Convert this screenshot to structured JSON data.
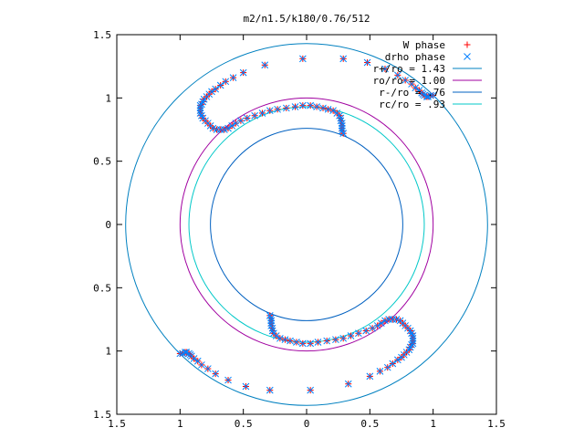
{
  "chart_data": {
    "type": "scatter",
    "title": "m2/n1.5/k180/0.76/512",
    "xlabel": "",
    "ylabel": "",
    "xlim": [
      -1.5,
      1.5
    ],
    "ylim": [
      -1.5,
      1.5
    ],
    "x_ticks": [
      {
        "value": -1.5,
        "label": "1.5"
      },
      {
        "value": -1.0,
        "label": "1"
      },
      {
        "value": -0.5,
        "label": "0.5"
      },
      {
        "value": 0.0,
        "label": "0"
      },
      {
        "value": 0.5,
        "label": "0.5"
      },
      {
        "value": 1.0,
        "label": "1"
      },
      {
        "value": 1.5,
        "label": "1.5"
      }
    ],
    "y_ticks": [
      {
        "value": 1.5,
        "label": "1.5"
      },
      {
        "value": 1.0,
        "label": "1"
      },
      {
        "value": 0.5,
        "label": "0.5"
      },
      {
        "value": 0.0,
        "label": "0"
      },
      {
        "value": -0.5,
        "label": "0.5"
      },
      {
        "value": -1.0,
        "label": "1"
      },
      {
        "value": -1.5,
        "label": "1.5"
      }
    ],
    "grid": false,
    "legend_position": "top-right",
    "circles": [
      {
        "name": "r+/ro = 1.43",
        "radius": 1.43,
        "color": "#0080c0"
      },
      {
        "name": "ro/ro = 1.00",
        "radius": 1.0,
        "color": "#a000a0"
      },
      {
        "name": "r-/ro = .76",
        "radius": 0.76,
        "color": "#0060c0"
      },
      {
        "name": "rc/ro = .93",
        "radius": 0.93,
        "color": "#00c8c8"
      }
    ],
    "series": [
      {
        "name": "W phase",
        "marker": "plus",
        "color": "#ff0000",
        "points": [
          [
            -1.0,
            -1.02
          ],
          [
            -0.98,
            -1.02
          ],
          [
            -0.96,
            -1.01
          ],
          [
            -0.95,
            -1.01
          ],
          [
            -0.93,
            -1.02
          ],
          [
            -0.92,
            -1.03
          ],
          [
            -0.91,
            -1.04
          ],
          [
            -0.89,
            -1.06
          ],
          [
            -0.86,
            -1.08
          ],
          [
            -0.83,
            -1.11
          ],
          [
            -0.78,
            -1.14
          ],
          [
            -0.72,
            -1.18
          ],
          [
            -0.62,
            -1.23
          ],
          [
            -0.48,
            -1.28
          ],
          [
            -0.29,
            -1.31
          ],
          [
            0.03,
            -1.31
          ],
          [
            0.33,
            -1.26
          ],
          [
            0.5,
            -1.2
          ],
          [
            0.58,
            -1.16
          ],
          [
            0.64,
            -1.13
          ],
          [
            0.68,
            -1.1
          ],
          [
            0.72,
            -1.07
          ],
          [
            0.75,
            -1.05
          ],
          [
            0.77,
            -1.03
          ],
          [
            0.79,
            -1.01
          ],
          [
            0.81,
            -0.99
          ],
          [
            0.82,
            -0.97
          ],
          [
            0.83,
            -0.95
          ],
          [
            0.84,
            -0.94
          ],
          [
            0.84,
            -0.92
          ],
          [
            0.84,
            -0.9
          ],
          [
            0.84,
            -0.88
          ],
          [
            0.83,
            -0.86
          ],
          [
            0.82,
            -0.84
          ],
          [
            0.8,
            -0.82
          ],
          [
            0.78,
            -0.8
          ],
          [
            0.76,
            -0.78
          ],
          [
            0.74,
            -0.76
          ],
          [
            0.71,
            -0.75
          ],
          [
            0.68,
            -0.75
          ],
          [
            0.65,
            -0.75
          ],
          [
            0.62,
            -0.76
          ],
          [
            0.59,
            -0.78
          ],
          [
            0.56,
            -0.8
          ],
          [
            0.52,
            -0.82
          ],
          [
            0.47,
            -0.84
          ],
          [
            0.41,
            -0.86
          ],
          [
            0.35,
            -0.88
          ],
          [
            0.29,
            -0.9
          ],
          [
            0.23,
            -0.91
          ],
          [
            0.16,
            -0.92
          ],
          [
            0.09,
            -0.93
          ],
          [
            0.03,
            -0.94
          ],
          [
            -0.03,
            -0.94
          ],
          [
            -0.08,
            -0.93
          ],
          [
            -0.13,
            -0.92
          ],
          [
            -0.17,
            -0.91
          ],
          [
            -0.21,
            -0.9
          ],
          [
            -0.24,
            -0.88
          ],
          [
            -0.26,
            -0.86
          ],
          [
            -0.27,
            -0.84
          ],
          [
            -0.27,
            -0.82
          ],
          [
            -0.28,
            -0.8
          ],
          [
            -0.28,
            -0.78
          ],
          [
            -0.28,
            -0.76
          ],
          [
            -0.28,
            -0.74
          ],
          [
            -0.29,
            -0.72
          ],
          [
            1.0,
            1.02
          ],
          [
            0.98,
            1.02
          ],
          [
            0.96,
            1.01
          ],
          [
            0.95,
            1.01
          ],
          [
            0.93,
            1.02
          ],
          [
            0.92,
            1.03
          ],
          [
            0.91,
            1.04
          ],
          [
            0.89,
            1.06
          ],
          [
            0.86,
            1.08
          ],
          [
            0.83,
            1.11
          ],
          [
            0.78,
            1.14
          ],
          [
            0.72,
            1.18
          ],
          [
            0.62,
            1.23
          ],
          [
            0.48,
            1.28
          ],
          [
            0.29,
            1.31
          ],
          [
            -0.03,
            1.31
          ],
          [
            -0.33,
            1.26
          ],
          [
            -0.5,
            1.2
          ],
          [
            -0.58,
            1.16
          ],
          [
            -0.64,
            1.13
          ],
          [
            -0.68,
            1.1
          ],
          [
            -0.72,
            1.07
          ],
          [
            -0.75,
            1.05
          ],
          [
            -0.77,
            1.03
          ],
          [
            -0.79,
            1.01
          ],
          [
            -0.81,
            0.99
          ],
          [
            -0.82,
            0.97
          ],
          [
            -0.83,
            0.95
          ],
          [
            -0.84,
            0.94
          ],
          [
            -0.84,
            0.92
          ],
          [
            -0.84,
            0.9
          ],
          [
            -0.84,
            0.88
          ],
          [
            -0.83,
            0.86
          ],
          [
            -0.82,
            0.84
          ],
          [
            -0.8,
            0.82
          ],
          [
            -0.78,
            0.8
          ],
          [
            -0.76,
            0.78
          ],
          [
            -0.74,
            0.76
          ],
          [
            -0.71,
            0.75
          ],
          [
            -0.68,
            0.75
          ],
          [
            -0.65,
            0.75
          ],
          [
            -0.62,
            0.76
          ],
          [
            -0.59,
            0.78
          ],
          [
            -0.56,
            0.8
          ],
          [
            -0.52,
            0.82
          ],
          [
            -0.47,
            0.84
          ],
          [
            -0.41,
            0.86
          ],
          [
            -0.35,
            0.88
          ],
          [
            -0.29,
            0.9
          ],
          [
            -0.23,
            0.91
          ],
          [
            -0.16,
            0.92
          ],
          [
            -0.09,
            0.93
          ],
          [
            -0.03,
            0.94
          ],
          [
            0.03,
            0.94
          ],
          [
            0.08,
            0.93
          ],
          [
            0.13,
            0.92
          ],
          [
            0.17,
            0.91
          ],
          [
            0.21,
            0.9
          ],
          [
            0.24,
            0.88
          ],
          [
            0.26,
            0.86
          ],
          [
            0.27,
            0.84
          ],
          [
            0.27,
            0.82
          ],
          [
            0.28,
            0.8
          ],
          [
            0.28,
            0.78
          ],
          [
            0.28,
            0.76
          ],
          [
            0.28,
            0.74
          ],
          [
            0.29,
            0.72
          ]
        ]
      },
      {
        "name": "drho phase",
        "marker": "cross",
        "color": "#0080ff",
        "points": [
          [
            -1.0,
            -1.02
          ],
          [
            -0.98,
            -1.02
          ],
          [
            -0.96,
            -1.01
          ],
          [
            -0.95,
            -1.01
          ],
          [
            -0.93,
            -1.02
          ],
          [
            -0.92,
            -1.03
          ],
          [
            -0.91,
            -1.04
          ],
          [
            -0.89,
            -1.06
          ],
          [
            -0.86,
            -1.08
          ],
          [
            -0.83,
            -1.11
          ],
          [
            -0.78,
            -1.14
          ],
          [
            -0.72,
            -1.18
          ],
          [
            -0.62,
            -1.23
          ],
          [
            -0.48,
            -1.28
          ],
          [
            -0.29,
            -1.31
          ],
          [
            0.03,
            -1.31
          ],
          [
            0.33,
            -1.26
          ],
          [
            0.5,
            -1.2
          ],
          [
            0.58,
            -1.16
          ],
          [
            0.64,
            -1.13
          ],
          [
            0.68,
            -1.1
          ],
          [
            0.72,
            -1.07
          ],
          [
            0.75,
            -1.05
          ],
          [
            0.77,
            -1.03
          ],
          [
            0.79,
            -1.01
          ],
          [
            0.81,
            -0.99
          ],
          [
            0.82,
            -0.97
          ],
          [
            0.83,
            -0.95
          ],
          [
            0.84,
            -0.94
          ],
          [
            0.84,
            -0.92
          ],
          [
            0.84,
            -0.9
          ],
          [
            0.84,
            -0.88
          ],
          [
            0.83,
            -0.86
          ],
          [
            0.82,
            -0.84
          ],
          [
            0.8,
            -0.82
          ],
          [
            0.78,
            -0.8
          ],
          [
            0.76,
            -0.78
          ],
          [
            0.74,
            -0.76
          ],
          [
            0.71,
            -0.75
          ],
          [
            0.68,
            -0.75
          ],
          [
            0.65,
            -0.75
          ],
          [
            0.62,
            -0.76
          ],
          [
            0.59,
            -0.78
          ],
          [
            0.56,
            -0.8
          ],
          [
            0.52,
            -0.82
          ],
          [
            0.47,
            -0.84
          ],
          [
            0.41,
            -0.86
          ],
          [
            0.35,
            -0.88
          ],
          [
            0.29,
            -0.9
          ],
          [
            0.23,
            -0.91
          ],
          [
            0.16,
            -0.92
          ],
          [
            0.09,
            -0.93
          ],
          [
            0.03,
            -0.94
          ],
          [
            -0.03,
            -0.94
          ],
          [
            -0.08,
            -0.93
          ],
          [
            -0.13,
            -0.92
          ],
          [
            -0.17,
            -0.91
          ],
          [
            -0.21,
            -0.9
          ],
          [
            -0.24,
            -0.88
          ],
          [
            -0.26,
            -0.86
          ],
          [
            -0.27,
            -0.84
          ],
          [
            -0.27,
            -0.82
          ],
          [
            -0.28,
            -0.8
          ],
          [
            -0.28,
            -0.78
          ],
          [
            -0.28,
            -0.76
          ],
          [
            -0.28,
            -0.74
          ],
          [
            -0.29,
            -0.72
          ],
          [
            1.0,
            1.02
          ],
          [
            0.98,
            1.02
          ],
          [
            0.96,
            1.01
          ],
          [
            0.95,
            1.01
          ],
          [
            0.93,
            1.02
          ],
          [
            0.92,
            1.03
          ],
          [
            0.91,
            1.04
          ],
          [
            0.89,
            1.06
          ],
          [
            0.86,
            1.08
          ],
          [
            0.83,
            1.11
          ],
          [
            0.78,
            1.14
          ],
          [
            0.72,
            1.18
          ],
          [
            0.62,
            1.23
          ],
          [
            0.48,
            1.28
          ],
          [
            0.29,
            1.31
          ],
          [
            -0.03,
            1.31
          ],
          [
            -0.33,
            1.26
          ],
          [
            -0.5,
            1.2
          ],
          [
            -0.58,
            1.16
          ],
          [
            -0.64,
            1.13
          ],
          [
            -0.68,
            1.1
          ],
          [
            -0.72,
            1.07
          ],
          [
            -0.75,
            1.05
          ],
          [
            -0.77,
            1.03
          ],
          [
            -0.79,
            1.01
          ],
          [
            -0.81,
            0.99
          ],
          [
            -0.82,
            0.97
          ],
          [
            -0.83,
            0.95
          ],
          [
            -0.84,
            0.94
          ],
          [
            -0.84,
            0.92
          ],
          [
            -0.84,
            0.9
          ],
          [
            -0.84,
            0.88
          ],
          [
            -0.83,
            0.86
          ],
          [
            -0.82,
            0.84
          ],
          [
            -0.8,
            0.82
          ],
          [
            -0.78,
            0.8
          ],
          [
            -0.76,
            0.78
          ],
          [
            -0.74,
            0.76
          ],
          [
            -0.71,
            0.75
          ],
          [
            -0.68,
            0.75
          ],
          [
            -0.65,
            0.75
          ],
          [
            -0.62,
            0.76
          ],
          [
            -0.59,
            0.78
          ],
          [
            -0.56,
            0.8
          ],
          [
            -0.52,
            0.82
          ],
          [
            -0.47,
            0.84
          ],
          [
            -0.41,
            0.86
          ],
          [
            -0.35,
            0.88
          ],
          [
            -0.29,
            0.9
          ],
          [
            -0.23,
            0.91
          ],
          [
            -0.16,
            0.92
          ],
          [
            -0.09,
            0.93
          ],
          [
            -0.03,
            0.94
          ],
          [
            0.03,
            0.94
          ],
          [
            0.08,
            0.93
          ],
          [
            0.13,
            0.92
          ],
          [
            0.17,
            0.91
          ],
          [
            0.21,
            0.9
          ],
          [
            0.24,
            0.88
          ],
          [
            0.26,
            0.86
          ],
          [
            0.27,
            0.84
          ],
          [
            0.27,
            0.82
          ],
          [
            0.28,
            0.8
          ],
          [
            0.28,
            0.78
          ],
          [
            0.28,
            0.76
          ],
          [
            0.28,
            0.74
          ],
          [
            0.29,
            0.72
          ]
        ]
      }
    ]
  }
}
